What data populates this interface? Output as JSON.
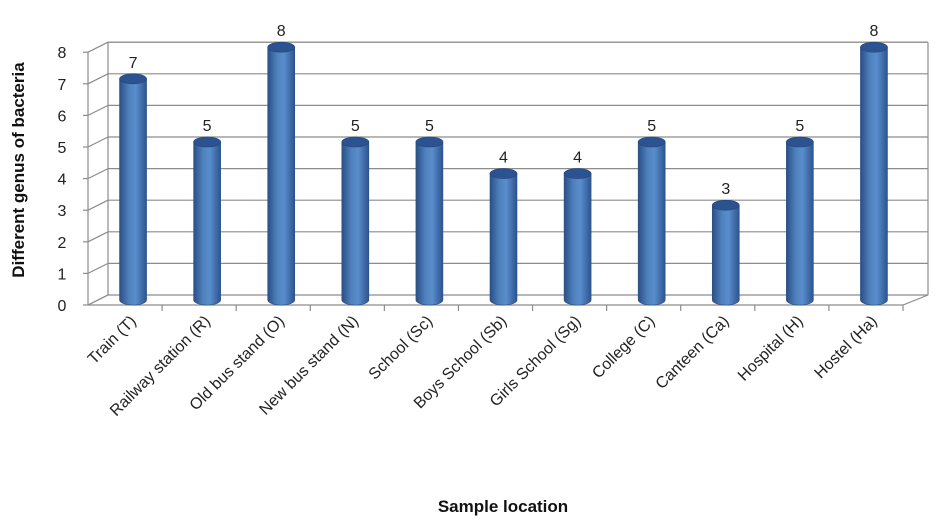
{
  "chart_data": {
    "type": "bar",
    "style": "3d-cylinder",
    "categories": [
      "Train (T)",
      "Railway station (R)",
      "Old bus stand (O)",
      "New bus stand (N)",
      "School (Sc)",
      "Boys School (Sb)",
      "Girls School (Sg)",
      "College (C)",
      "Canteen (Ca)",
      "Hospital (H)",
      "Hostel (Ha)"
    ],
    "values": [
      7,
      5,
      8,
      5,
      5,
      4,
      4,
      5,
      3,
      5,
      8
    ],
    "data_labels": [
      "7",
      "5",
      "8",
      "5",
      "5",
      "4",
      "4",
      "5",
      "3",
      "5",
      "8"
    ],
    "yticks": [
      "0",
      "1",
      "2",
      "3",
      "4",
      "5",
      "6",
      "7",
      "8"
    ],
    "xlabel": "Sample location",
    "ylabel": "Different genus of bacteria",
    "ylim": [
      0,
      8
    ],
    "grid": true,
    "legend": "none",
    "bar_color": "#4f81bd"
  }
}
